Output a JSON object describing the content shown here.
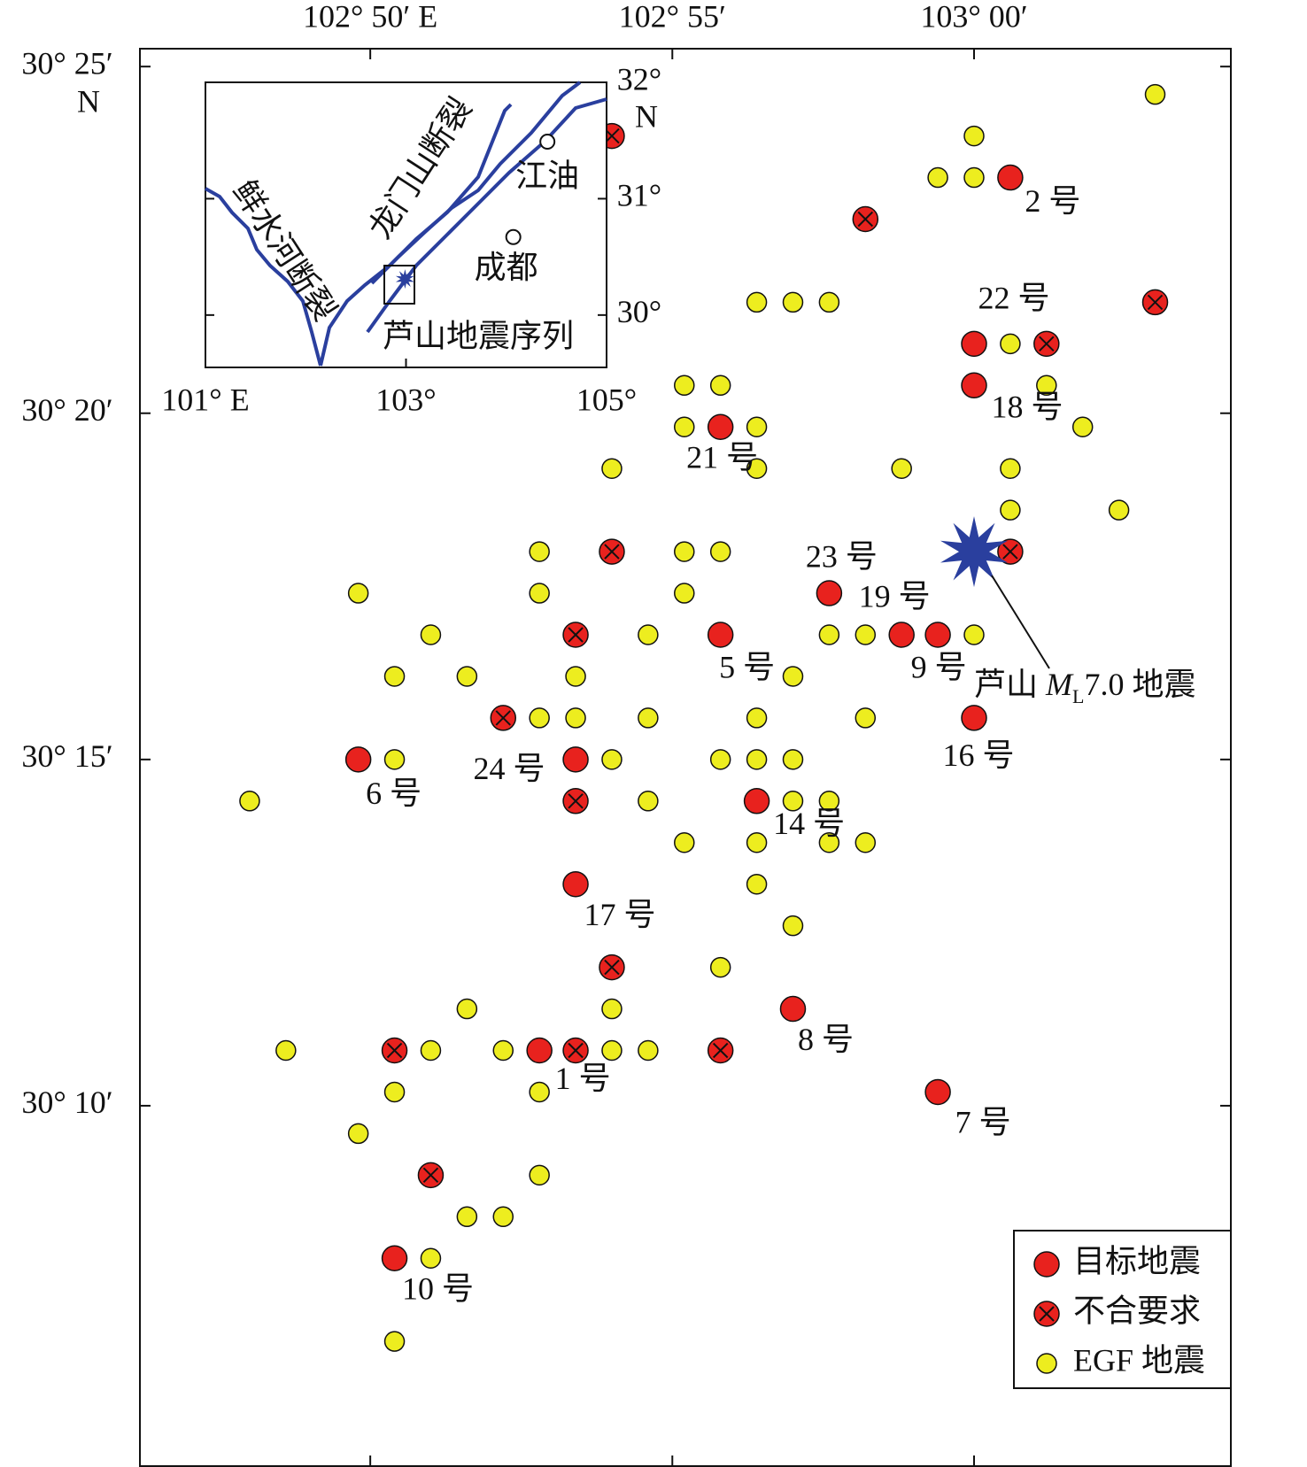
{
  "map": {
    "xlim": [
      102.7697,
      103.0709
    ],
    "ylim": [
      30.08,
      30.421
    ],
    "xticks": [
      {
        "value": 102.8333,
        "label": "102° 50′ E"
      },
      {
        "value": 102.9167,
        "label": "102° 55′"
      },
      {
        "value": 103.0,
        "label": "103° 00′"
      }
    ],
    "yticks": [
      {
        "value": 30.4167,
        "label": "30° 25′"
      },
      {
        "value": 30.3333,
        "label": "30° 20′"
      },
      {
        "value": 30.25,
        "label": "30° 15′"
      },
      {
        "value": 30.1667,
        "label": "30° 10′"
      }
    ],
    "y_unit": "N",
    "series": [
      {
        "name": "目标地震",
        "color": "#e8221e",
        "marker": "circle",
        "lon": [
          103.01,
          103.0,
          103.0,
          102.93,
          102.96,
          102.98,
          102.99,
          102.93,
          103.0,
          102.89,
          102.83,
          102.94,
          102.89,
          102.95,
          102.88,
          102.99,
          102.84
        ],
        "lat": [
          30.39,
          30.35,
          30.34,
          30.33,
          30.29,
          30.28,
          30.28,
          30.28,
          30.26,
          30.25,
          30.25,
          30.24,
          30.22,
          30.19,
          30.18,
          30.17,
          30.13
        ],
        "labels": [
          "2 号",
          "22 号",
          "18 号",
          "21 号",
          "23 号",
          "19 号",
          "9 号",
          "5 号",
          "16 号",
          "24 号",
          "6 号",
          "14 号",
          "17 号",
          "8 号",
          "1 号",
          "7 号",
          "10 号"
        ]
      },
      {
        "name": "不合要求",
        "color": "#e8221e",
        "marker": "cross",
        "lon": [
          102.9,
          102.97,
          103.05,
          103.02,
          102.9,
          103.01,
          102.89,
          102.87,
          102.89,
          102.9,
          102.84,
          102.89,
          102.93,
          102.85
        ],
        "lat": [
          30.4,
          30.38,
          30.36,
          30.35,
          30.3,
          30.3,
          30.28,
          30.26,
          30.24,
          30.2,
          30.18,
          30.18,
          30.18,
          30.15
        ]
      },
      {
        "name": "EGF 地震",
        "color": "#eded1f",
        "marker": "small",
        "lon": [
          103.05,
          103.0,
          102.99,
          103.0,
          102.94,
          102.95,
          102.96,
          103.01,
          103.02,
          102.92,
          102.93,
          102.92,
          102.94,
          103.03,
          102.9,
          102.94,
          102.98,
          103.01,
          103.01,
          103.04,
          102.88,
          102.92,
          102.93,
          102.83,
          102.88,
          102.92,
          102.85,
          102.91,
          102.96,
          102.97,
          103.0,
          102.84,
          102.86,
          102.89,
          102.95,
          102.88,
          102.89,
          102.91,
          102.94,
          102.97,
          102.84,
          102.9,
          102.93,
          102.94,
          102.95,
          102.8,
          102.91,
          102.95,
          102.96,
          102.92,
          102.94,
          102.96,
          102.97,
          102.94,
          102.95,
          102.93,
          102.86,
          102.9,
          102.81,
          102.85,
          102.87,
          102.9,
          102.91,
          102.84,
          102.88,
          102.83,
          102.88,
          102.86,
          102.87,
          102.85,
          102.84
        ],
        "lat": [
          30.41,
          30.4,
          30.39,
          30.39,
          30.36,
          30.36,
          30.36,
          30.35,
          30.34,
          30.34,
          30.34,
          30.33,
          30.33,
          30.33,
          30.32,
          30.32,
          30.32,
          30.32,
          30.31,
          30.31,
          30.3,
          30.3,
          30.3,
          30.29,
          30.29,
          30.29,
          30.28,
          30.28,
          30.28,
          30.28,
          30.28,
          30.27,
          30.27,
          30.27,
          30.27,
          30.26,
          30.26,
          30.26,
          30.26,
          30.26,
          30.25,
          30.25,
          30.25,
          30.25,
          30.25,
          30.24,
          30.24,
          30.24,
          30.24,
          30.23,
          30.23,
          30.23,
          30.23,
          30.22,
          30.21,
          30.2,
          30.19,
          30.19,
          30.18,
          30.18,
          30.18,
          30.18,
          30.18,
          30.17,
          30.17,
          30.16,
          30.15,
          30.14,
          30.14,
          30.13,
          30.11
        ]
      }
    ],
    "mainshock": {
      "lon": 103.0,
      "lat": 30.3,
      "color": "#2a3f9e",
      "label": [
        "芦山 ",
        "M",
        "L",
        "7.0 地震"
      ]
    },
    "inset": {
      "xlim": [
        101,
        105
      ],
      "ylim": [
        29.55,
        32.0
      ],
      "xticks": [
        {
          "value": 101,
          "label": "101° E"
        },
        {
          "value": 103,
          "label": "103°"
        },
        {
          "value": 105,
          "label": "105°"
        }
      ],
      "yticks": [
        {
          "value": 32,
          "label": "32°"
        },
        {
          "value": 31,
          "label": "31°"
        },
        {
          "value": 30,
          "label": "30°"
        }
      ],
      "y_unit": "N",
      "faults": [
        "鲜水河断裂",
        "龙门山断裂"
      ],
      "cities": [
        {
          "name": "江油",
          "lon": 104.41,
          "lat": 31.49
        },
        {
          "name": "成都",
          "lon": 104.07,
          "lat": 30.67
        }
      ],
      "sequence_label": "芦山地震序列",
      "epicenter": {
        "lon": 102.99,
        "lat": 30.31
      }
    }
  }
}
